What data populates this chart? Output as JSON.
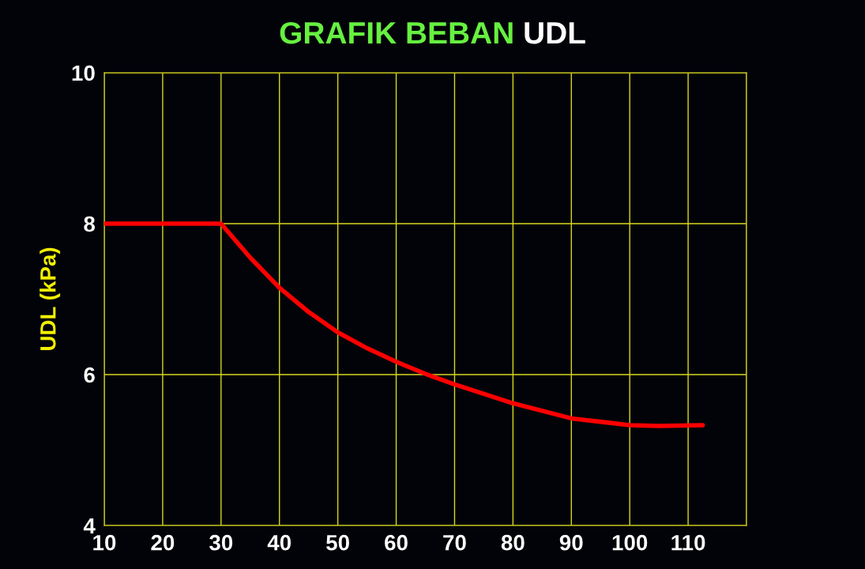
{
  "chart_data": {
    "type": "line",
    "title": "GRAFIK BEBAN UDL",
    "ylabel": "UDL (kPa)",
    "x": [
      10,
      20,
      30,
      35,
      40,
      45,
      50,
      55,
      60,
      65,
      70,
      80,
      90,
      100,
      105,
      112.5
    ],
    "series": [
      {
        "color": "#ff0000",
        "values": [
          8,
          8,
          8,
          7.55,
          7.15,
          6.83,
          6.56,
          6.35,
          6.17,
          6.01,
          5.87,
          5.62,
          5.42,
          5.33,
          5.32,
          5.33
        ]
      }
    ],
    "xlim": [
      10,
      120
    ],
    "xticks": [
      10,
      20,
      30,
      40,
      50,
      60,
      70,
      80,
      90,
      100,
      110
    ],
    "ylim": [
      4,
      10
    ],
    "yticks": [
      4,
      6,
      8,
      10
    ],
    "grid": true,
    "marker": "none",
    "line_style": "solid"
  }
}
